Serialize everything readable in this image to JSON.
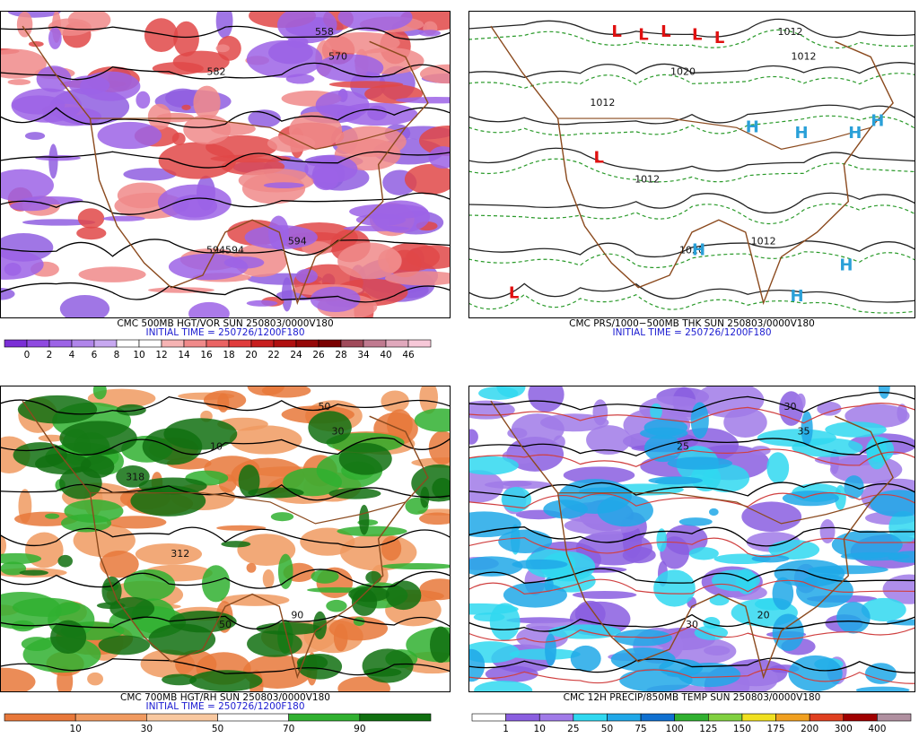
{
  "panels": [
    {
      "caption": "CMC 500MB HGT/VOR SUN 250803/0000V180",
      "initial": "INITIAL TIME = 250726/1200F180",
      "colorbar": {
        "labels": [
          "0",
          "2",
          "4",
          "6",
          "8",
          "10",
          "12",
          "14",
          "16",
          "18",
          "20",
          "22",
          "24",
          "26",
          "28",
          "34",
          "40",
          "46"
        ],
        "colors": [
          "#7b2fd6",
          "#8f4ae0",
          "#9c63e6",
          "#b085ea",
          "#c7a8f0",
          "#ffffff",
          "#ffffff",
          "#f6b3b3",
          "#f08a8a",
          "#ea6464",
          "#e03c3c",
          "#c81e1e",
          "#b01010",
          "#960808",
          "#7a0000",
          "#a04a5a",
          "#c07a90",
          "#e0a8bc",
          "#f7c8d8"
        ]
      },
      "map_labels": [
        "558",
        "570",
        "582",
        "594594",
        "594"
      ],
      "fill_colors": [
        "#8f5ee0",
        "#e04848",
        "#f08a8a",
        "#9c63e6"
      ]
    },
    {
      "caption": "CMC PRS/1000−500MB THK SUN 250803/0000V180",
      "initial": "INITIAL TIME = 250726/1200F180",
      "map_labels": [
        "1012",
        "1012",
        "1020",
        "1020",
        "1012",
        "1012",
        "1012"
      ],
      "highs": [
        "H",
        "H",
        "H",
        "H",
        "H",
        "H",
        "H"
      ],
      "lows": [
        "L",
        "L",
        "L",
        "L",
        "L",
        "L",
        "L"
      ]
    },
    {
      "caption": "CMC 700MB HGT/RH SUN 250803/0000V180",
      "initial": "INITIAL TIME = 250726/1200F180",
      "colorbar": {
        "labels": [
          "10",
          "30",
          "50",
          "70",
          "90"
        ],
        "colors": [
          "#e8783a",
          "#f09a60",
          "#f8c8a0",
          "#ffffff",
          "#30b030",
          "#107010"
        ]
      },
      "map_labels": [
        "50",
        "30",
        "10",
        "50",
        "90",
        "318",
        "312"
      ],
      "fill_colors": [
        "#f09a60",
        "#e8783a",
        "#30b030",
        "#107010"
      ]
    },
    {
      "caption": "CMC 12H PRECIP/850MB TEMP SUN 250803/0000V180",
      "initial": "",
      "colorbar": {
        "labels": [
          "1",
          "10",
          "25",
          "50",
          "75",
          "100",
          "125",
          "150",
          "175",
          "200",
          "300",
          "400"
        ],
        "colors": [
          "#ffffff",
          "#8a5ee0",
          "#a07ae8",
          "#30d8f0",
          "#20a8e8",
          "#1070d0",
          "#30b030",
          "#80d040",
          "#f0e020",
          "#f0a020",
          "#e04020",
          "#a00000",
          "#b090a0"
        ]
      },
      "map_labels": [
        "30",
        "35",
        "25",
        "30",
        "20"
      ],
      "fill_colors": [
        "#8a5ee0",
        "#a07ae8",
        "#30d8f0",
        "#20a8e8"
      ]
    }
  ]
}
